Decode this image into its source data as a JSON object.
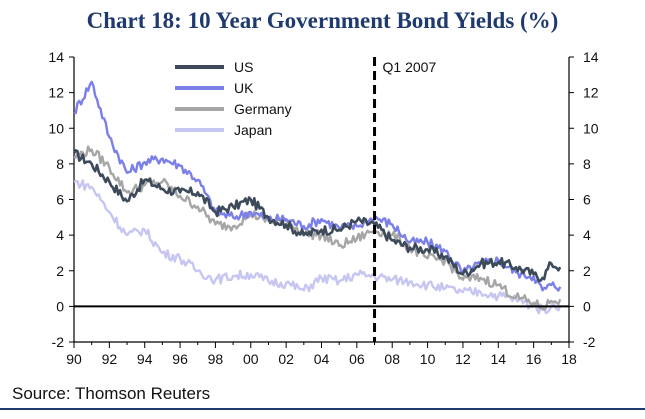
{
  "chart_data": {
    "type": "line",
    "title": "Chart 18: 10 Year Government Bond Yields (%)",
    "xlabel": "",
    "ylabel": "",
    "x": [
      "1990",
      "1991",
      "1992",
      "1993",
      "1994",
      "1995",
      "1996",
      "1997",
      "1998",
      "1999",
      "2000",
      "2001",
      "2002",
      "2003",
      "2004",
      "2005",
      "2006",
      "2007",
      "2008",
      "2009",
      "2010",
      "2011",
      "2012",
      "2013",
      "2014",
      "2015",
      "2016",
      "2016.5",
      "2017",
      "2017.5"
    ],
    "xlim": [
      1990,
      2018
    ],
    "ylim": [
      -2,
      14
    ],
    "x_ticks": [
      "90",
      "92",
      "94",
      "96",
      "98",
      "00",
      "02",
      "04",
      "06",
      "08",
      "10",
      "12",
      "14",
      "16",
      "18"
    ],
    "y_ticks_left": [
      "-2",
      "0",
      "2",
      "4",
      "6",
      "8",
      "10",
      "12",
      "14"
    ],
    "y_ticks_right": [
      "-2",
      "0",
      "2",
      "4",
      "6",
      "8",
      "10",
      "12",
      "14"
    ],
    "series": [
      {
        "name": "US",
        "color": "#3d4a5a",
        "values": [
          8.6,
          8.0,
          7.0,
          5.9,
          7.1,
          6.6,
          6.4,
          6.4,
          5.3,
          5.6,
          6.0,
          5.0,
          4.6,
          4.0,
          4.3,
          4.3,
          4.8,
          4.6,
          3.7,
          3.3,
          3.2,
          2.8,
          1.8,
          2.4,
          2.5,
          2.2,
          1.8,
          1.6,
          2.4,
          2.2
        ]
      },
      {
        "name": "UK",
        "color": "#7b7fe8",
        "values": [
          10.9,
          12.6,
          9.5,
          7.5,
          8.1,
          8.3,
          7.9,
          7.1,
          5.3,
          5.0,
          5.3,
          4.9,
          4.9,
          4.5,
          4.9,
          4.4,
          4.5,
          5.0,
          4.6,
          3.6,
          3.6,
          3.1,
          1.9,
          2.4,
          2.6,
          1.9,
          1.7,
          0.9,
          1.2,
          1.1
        ]
      },
      {
        "name": "Germany",
        "color": "#a6a6a6",
        "values": [
          8.4,
          8.8,
          7.8,
          6.4,
          6.8,
          7.0,
          6.2,
          5.6,
          4.6,
          4.5,
          5.2,
          4.8,
          4.8,
          4.1,
          4.0,
          3.4,
          3.8,
          4.3,
          4.0,
          3.3,
          2.7,
          2.6,
          1.5,
          1.6,
          1.2,
          0.5,
          0.2,
          -0.1,
          0.3,
          0.4
        ]
      },
      {
        "name": "Japan",
        "color": "#c6c6f2",
        "values": [
          7.0,
          6.7,
          5.3,
          4.0,
          4.3,
          3.0,
          2.7,
          2.0,
          1.5,
          1.7,
          1.8,
          1.4,
          1.3,
          0.9,
          1.6,
          1.4,
          1.8,
          1.7,
          1.5,
          1.4,
          1.2,
          1.0,
          0.8,
          0.8,
          0.6,
          0.4,
          0.0,
          -0.2,
          0.0,
          0.05
        ]
      }
    ],
    "annotations": [
      {
        "text": "Q1 2007",
        "x": 2007,
        "style": "dashed vertical line"
      }
    ],
    "legend_position": "top-left",
    "zero_line": true
  },
  "source": "Source: Thomson Reuters"
}
